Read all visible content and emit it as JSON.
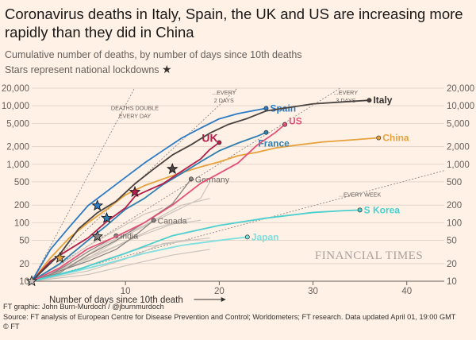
{
  "title": "Coronavirus deaths in Italy, Spain, the UK and US are increasing more rapidly than they did in China",
  "subtitle": "Cumulative number of deaths, by number of days since 10th deaths",
  "subtitle_note": "Stars represent national lockdowns",
  "watermark": "FINANCIAL TIMES",
  "xlabel": "Number of days since 10th death",
  "credit": "FT graphic: John Burn-Murdoch / @jburnmurdoch",
  "source": "Source: FT analysis of European Centre for Disease Prevention and Control; Worldometers; FT research. Data updated April 01, 19:00 GMT",
  "copyright": "© FT",
  "chart_data": {
    "type": "line",
    "y_scale": "log",
    "xlim": [
      0,
      44
    ],
    "ylim": [
      10,
      20000
    ],
    "grid": true,
    "x_ticks": [
      10,
      20,
      30,
      40
    ],
    "y_ticks": [
      10,
      20,
      50,
      100,
      200,
      500,
      1000,
      2000,
      5000,
      10000,
      20000
    ],
    "y_tick_labels": [
      "10",
      "20",
      "50",
      "100",
      "200",
      "500",
      "1,000",
      "2,000",
      "5,000",
      "10,000",
      "20,000"
    ],
    "reference_lines": [
      {
        "label": "DEATHS DOUBLE EVERY DAY",
        "doubling_days": 1
      },
      {
        "label": "...EVERY 2 DAYS",
        "doubling_days": 2
      },
      {
        "label": "...EVERY 3 DAYS",
        "doubling_days": 3
      },
      {
        "label": "...EVERY WEEK",
        "doubling_days": 7
      }
    ],
    "series": [
      {
        "name": "Italy",
        "color": "#4a4340",
        "x": [
          0,
          3,
          5,
          7,
          9,
          11,
          13,
          15,
          17,
          19,
          21,
          23,
          25,
          27,
          30,
          33,
          36
        ],
        "y": [
          10,
          29,
          79,
          148,
          233,
          463,
          827,
          1441,
          2158,
          3405,
          4825,
          6077,
          8165,
          9134,
          10779,
          11591,
          12428
        ],
        "lockdown": [
          15,
          827
        ]
      },
      {
        "name": "Spain",
        "color": "#2a7ac6",
        "x": [
          0,
          2,
          4,
          6,
          8,
          10,
          12,
          14,
          16,
          18,
          20,
          22,
          24,
          25
        ],
        "y": [
          10,
          35,
          84,
          196,
          342,
          598,
          1043,
          1720,
          2808,
          4145,
          5982,
          7340,
          8464,
          9053
        ],
        "lockdown": [
          7,
          196
        ]
      },
      {
        "name": "US",
        "color": "#e2517a",
        "x": [
          0,
          3,
          6,
          9,
          12,
          15,
          18,
          20,
          22,
          24,
          26,
          27
        ],
        "y": [
          10,
          17,
          36,
          58,
          100,
          200,
          470,
          700,
          1050,
          2100,
          3500,
          4800
        ],
        "lockdown": null
      },
      {
        "name": "UK",
        "color": "#b31e4b",
        "x": [
          0,
          2,
          4,
          6,
          8,
          10,
          11,
          12,
          14,
          16,
          18,
          19,
          20
        ],
        "y": [
          10,
          22,
          35,
          55,
          105,
          180,
          281,
          335,
          465,
          760,
          1228,
          1789,
          2352
        ],
        "lockdown": [
          11,
          335
        ]
      },
      {
        "name": "France",
        "color": "#2e7fb0",
        "x": [
          0,
          3,
          6,
          8,
          10,
          12,
          14,
          16,
          18,
          20,
          22,
          24,
          25
        ],
        "y": [
          10,
          20,
          50,
          90,
          170,
          260,
          450,
          700,
          1100,
          1700,
          2300,
          3000,
          3500
        ],
        "lockdown": [
          8,
          120
        ]
      },
      {
        "name": "China",
        "color": "#e6a23c",
        "x": [
          0,
          2,
          4,
          6,
          8,
          10,
          12,
          14,
          16,
          18,
          20,
          22,
          24,
          26,
          28,
          31,
          34,
          37
        ],
        "y": [
          10,
          25,
          55,
          100,
          170,
          300,
          430,
          560,
          720,
          900,
          1100,
          1400,
          1600,
          1900,
          2100,
          2400,
          2600,
          2830
        ],
        "lockdown": [
          3,
          25
        ]
      },
      {
        "name": "Germany",
        "color": "#8a8480",
        "x": [
          0,
          3,
          6,
          9,
          12,
          15,
          17
        ],
        "y": [
          10,
          14,
          28,
          50,
          100,
          210,
          560
        ],
        "lockdown": null
      },
      {
        "name": "Canada",
        "color": "#8a8480",
        "x": [
          0,
          3,
          6,
          9,
          11,
          13
        ],
        "y": [
          10,
          15,
          22,
          35,
          60,
          110
        ],
        "lockdown": null
      },
      {
        "name": "India",
        "color": "#8a8480",
        "x": [
          0,
          2,
          4,
          6,
          8,
          9
        ],
        "y": [
          10,
          13,
          20,
          32,
          48,
          60
        ],
        "lockdown": [
          7,
          58
        ]
      },
      {
        "name": "S Korea",
        "color": "#4ccfcf",
        "x": [
          0,
          5,
          10,
          15,
          20,
          25,
          30,
          33,
          35
        ],
        "y": [
          10,
          16,
          30,
          60,
          90,
          120,
          150,
          160,
          165
        ],
        "lockdown": null
      },
      {
        "name": "Japan",
        "color": "#7fdede",
        "x": [
          0,
          4,
          8,
          12,
          16,
          20,
          23
        ],
        "y": [
          10,
          14,
          20,
          30,
          41,
          50,
          57
        ],
        "lockdown": null
      }
    ]
  }
}
